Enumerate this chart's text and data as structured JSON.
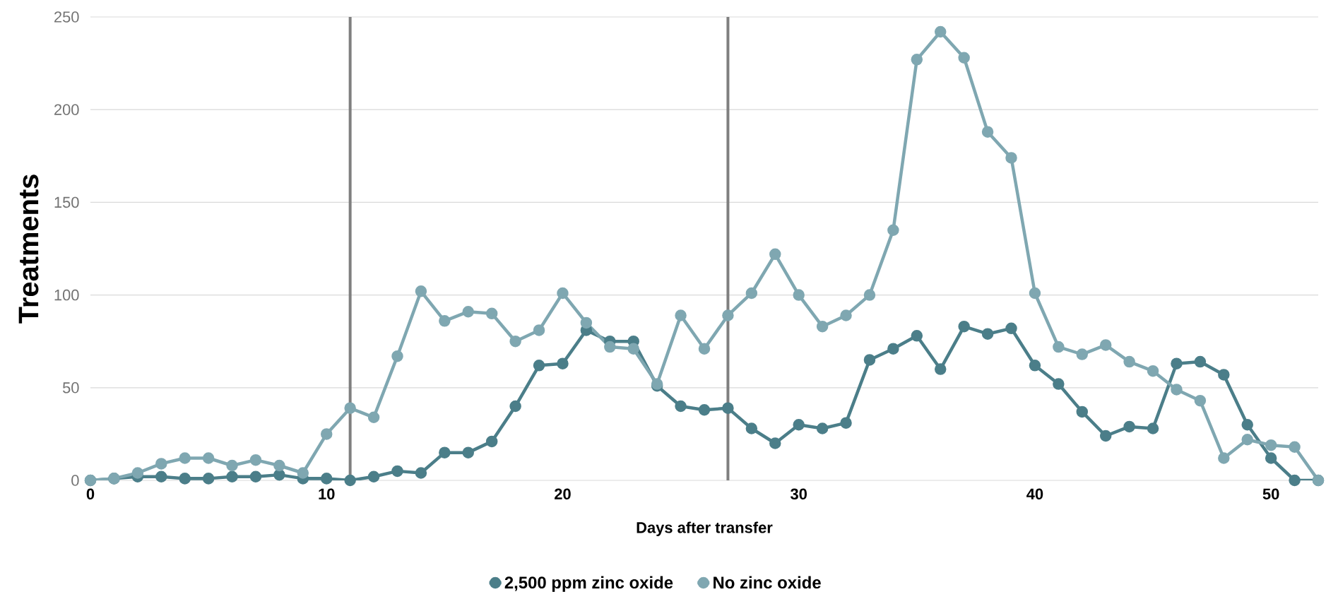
{
  "chart_data": {
    "type": "line",
    "xlabel": "Days after transfer",
    "ylabel": "Treatments",
    "x": [
      0,
      1,
      2,
      3,
      4,
      5,
      6,
      7,
      8,
      9,
      10,
      11,
      12,
      13,
      14,
      15,
      16,
      17,
      18,
      19,
      20,
      21,
      22,
      23,
      24,
      25,
      26,
      27,
      28,
      29,
      30,
      31,
      32,
      33,
      34,
      35,
      36,
      37,
      38,
      39,
      40,
      41,
      42,
      43,
      44,
      45,
      46,
      47,
      48,
      49,
      50,
      51,
      52
    ],
    "series": [
      {
        "name": "2,500 ppm zinc oxide",
        "color": "#4b7e89",
        "values": [
          0,
          1,
          2,
          2,
          1,
          1,
          2,
          2,
          3,
          1,
          1,
          0,
          2,
          5,
          4,
          15,
          15,
          21,
          40,
          62,
          63,
          81,
          75,
          75,
          51,
          40,
          38,
          39,
          28,
          20,
          30,
          28,
          31,
          65,
          71,
          78,
          60,
          83,
          79,
          82,
          62,
          52,
          37,
          24,
          29,
          28,
          63,
          64,
          57,
          30,
          12,
          0,
          0
        ]
      },
      {
        "name": "No zinc oxide",
        "color": "#7fa7b1",
        "values": [
          0,
          1,
          4,
          9,
          12,
          12,
          8,
          11,
          8,
          4,
          25,
          39,
          34,
          67,
          102,
          86,
          91,
          90,
          75,
          81,
          101,
          85,
          72,
          71,
          52,
          89,
          71,
          89,
          101,
          122,
          100,
          83,
          89,
          100,
          135,
          227,
          242,
          228,
          188,
          174,
          101,
          72,
          68,
          73,
          64,
          59,
          49,
          43,
          12,
          22,
          19,
          18,
          0
        ]
      }
    ],
    "xlim": [
      0,
      52
    ],
    "ylim": [
      0,
      250
    ],
    "xticks": [
      0,
      10,
      20,
      30,
      40,
      50
    ],
    "yticks": [
      0,
      50,
      100,
      150,
      200,
      250
    ],
    "grid": "y",
    "legend": "bottom",
    "marker": "circle",
    "line_style": "solid",
    "ref_lines": [
      {
        "axis": "x",
        "value": 11,
        "color": "#7f7f7f"
      },
      {
        "axis": "x",
        "value": 27,
        "color": "#7f7f7f"
      }
    ]
  }
}
